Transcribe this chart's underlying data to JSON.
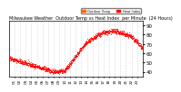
{
  "title": "Milwaukee Weather  Outdoor Temp vs Heat Index  per Minute  (24 Hours)",
  "legend_colors": [
    "#ff6600",
    "#ff0000"
  ],
  "bg_color": "#ffffff",
  "plot_bg": "#ffffff",
  "line_color": "#ff0000",
  "ylim": [
    35,
    95
  ],
  "yticks": [
    40,
    50,
    60,
    70,
    80,
    90
  ],
  "ylabel_fontsize": 4,
  "xlabel_fontsize": 3,
  "title_fontsize": 3.5,
  "grid_color": "#aaaaaa",
  "num_points": 1440,
  "temp_curve": {
    "phase_minutes": [
      0,
      150,
      420,
      480,
      600,
      780,
      840,
      900,
      960,
      1020,
      1080,
      1140,
      1200,
      1260,
      1320,
      1380,
      1440
    ],
    "temp_values": [
      55,
      50,
      42,
      40,
      41,
      65,
      72,
      75,
      80,
      82,
      83,
      84,
      82,
      80,
      78,
      72,
      65
    ]
  }
}
